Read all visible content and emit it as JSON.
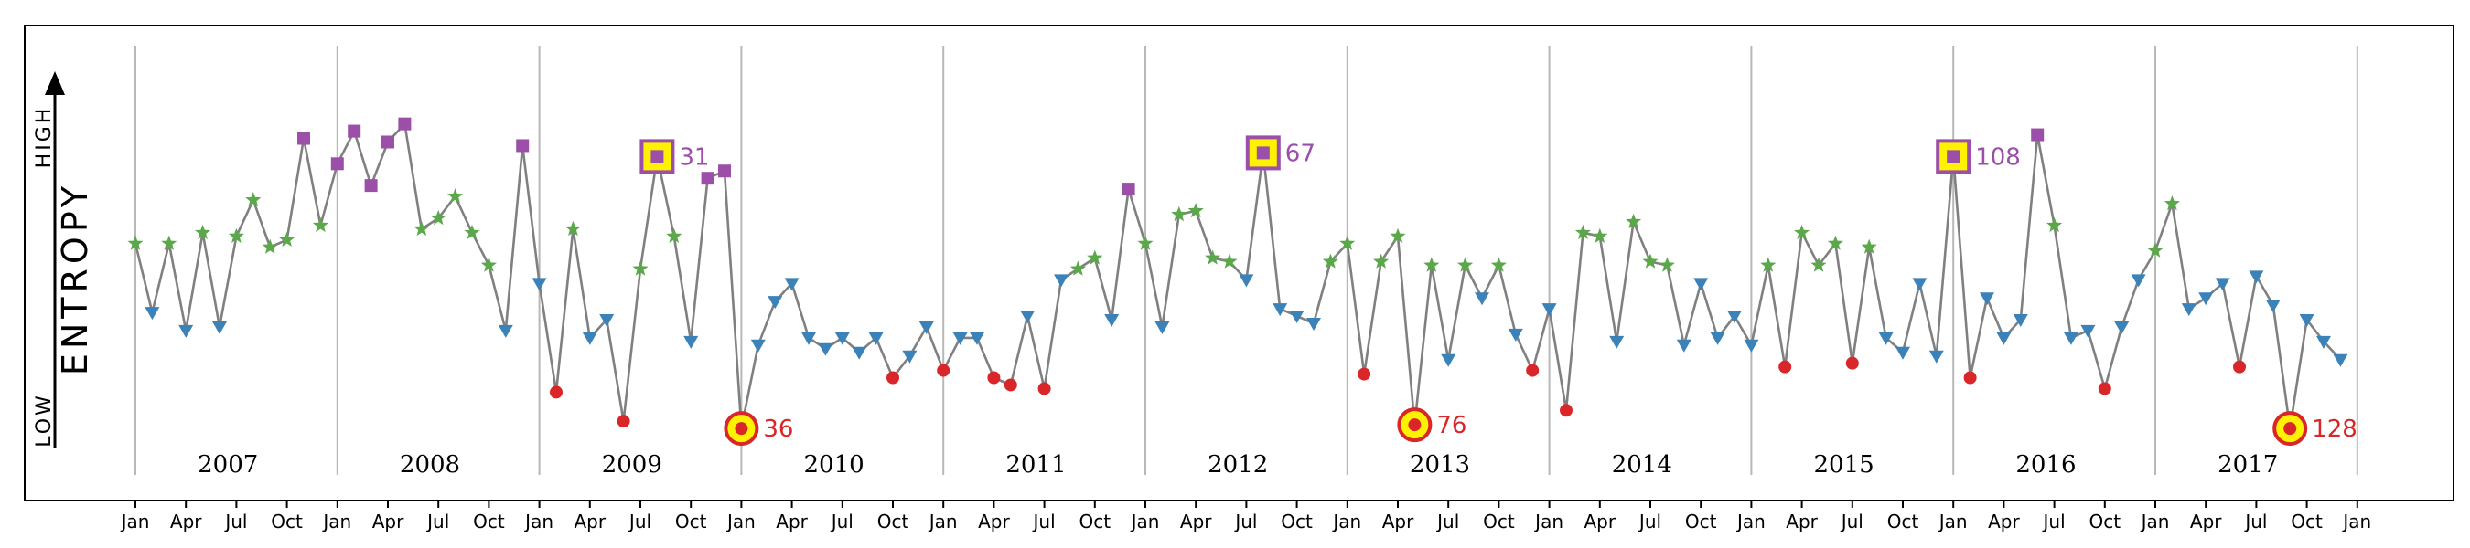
{
  "chart_data": {
    "type": "line",
    "ylabel": "ENTROPY",
    "y_high_label": "HIGH",
    "y_low_label": "LOW",
    "ylim": [
      0,
      1
    ],
    "xlim": [
      "2007-01",
      "2018-01"
    ],
    "x_tick_labels": [
      "Jan",
      "Apr",
      "Jul",
      "Oct"
    ],
    "years": [
      "2007",
      "2008",
      "2009",
      "2010",
      "2011",
      "2012",
      "2013",
      "2014",
      "2015",
      "2016",
      "2017"
    ],
    "series_start": "2007-01",
    "y": [
      0.55,
      0.36,
      0.55,
      0.31,
      0.58,
      0.32,
      0.57,
      0.67,
      0.54,
      0.56,
      0.84,
      0.6,
      0.77,
      0.86,
      0.71,
      0.83,
      0.88,
      0.59,
      0.62,
      0.68,
      0.58,
      0.49,
      0.31,
      0.82,
      0.44,
      0.14,
      0.59,
      0.29,
      0.34,
      0.06,
      0.48,
      0.79,
      0.57,
      0.28,
      0.73,
      0.75,
      0.04,
      0.27,
      0.39,
      0.44,
      0.29,
      0.26,
      0.29,
      0.25,
      0.29,
      0.18,
      0.24,
      0.32,
      0.2,
      0.29,
      0.29,
      0.18,
      0.16,
      0.35,
      0.15,
      0.45,
      0.48,
      0.51,
      0.34,
      0.7,
      0.55,
      0.32,
      0.63,
      0.64,
      0.51,
      0.5,
      0.45,
      0.8,
      0.37,
      0.35,
      0.33,
      0.5,
      0.55,
      0.19,
      0.5,
      0.57,
      0.05,
      0.49,
      0.23,
      0.49,
      0.4,
      0.49,
      0.3,
      0.2,
      0.37,
      0.09,
      0.58,
      0.57,
      0.28,
      0.61,
      0.5,
      0.49,
      0.27,
      0.44,
      0.29,
      0.35,
      0.27,
      0.49,
      0.21,
      0.58,
      0.49,
      0.55,
      0.22,
      0.54,
      0.29,
      0.25,
      0.44,
      0.24,
      0.79,
      0.18,
      0.4,
      0.29,
      0.34,
      0.85,
      0.6,
      0.29,
      0.31,
      0.15,
      0.32,
      0.45,
      0.53,
      0.66,
      0.37,
      0.4,
      0.44,
      0.21,
      0.46,
      0.38,
      0.04,
      0.34,
      0.28,
      0.23
    ],
    "categories": [
      "high",
      "mid",
      "low",
      "very-low"
    ],
    "annotations": [
      {
        "label": "31",
        "index": 31,
        "marker": "square"
      },
      {
        "label": "36",
        "index": 36,
        "marker": "circle"
      },
      {
        "label": "67",
        "index": 67,
        "marker": "square"
      },
      {
        "label": "76",
        "index": 76,
        "marker": "circle"
      },
      {
        "label": "108",
        "index": 108,
        "marker": "square"
      },
      {
        "label": "128",
        "index": 128,
        "marker": "circle"
      }
    ],
    "grid": "vertical-year-separators"
  },
  "colors": {
    "line": "#808080",
    "high": "#9b4fa8",
    "mid": "#5aa84a",
    "low": "#3a82b8",
    "very_low": "#d92628",
    "highlight": "#fff200",
    "grid": "#b8b8b8"
  }
}
